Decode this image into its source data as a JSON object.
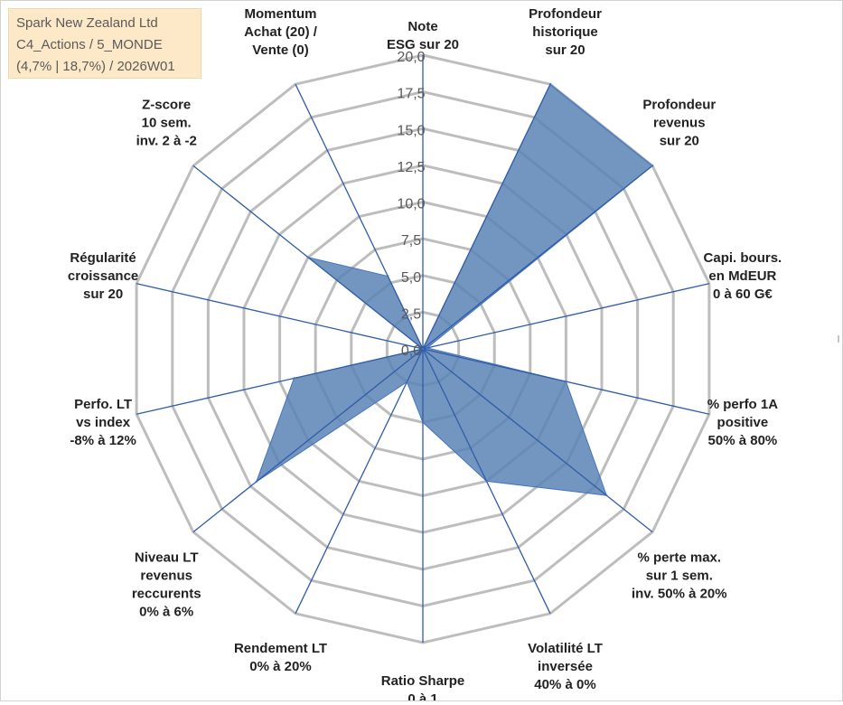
{
  "info_box": {
    "line1": "Spark New Zealand Ltd",
    "line2": "C4_Actions / 5_MONDE",
    "line3": "(4,7% | 18,7%) / 2026W01"
  },
  "colors": {
    "fill": "#5b84b5",
    "stroke": "#4472c4",
    "ring": "#bdbdbd",
    "spoke": "#2f5ca8",
    "info_bg": "#fde9c8"
  },
  "chart_data": {
    "type": "radar",
    "rmin": 0,
    "rmax": 20,
    "ticks": [
      "0,0",
      "2,5",
      "5,0",
      "7,5",
      "10,0",
      "12,5",
      "15,0",
      "17,5",
      "20,0"
    ],
    "categories": [
      [
        "Note",
        "ESG sur 20"
      ],
      [
        "Profondeur",
        "historique",
        "sur 20"
      ],
      [
        "Profondeur",
        "revenus",
        "sur 20"
      ],
      [
        "Capi. bours.",
        "en MdEUR",
        "0 à 60 G€"
      ],
      [
        "% perfo 1A",
        "positive",
        "50% à 80%"
      ],
      [
        "% perte max.",
        "sur 1 sem.",
        "inv. 50% à 20%"
      ],
      [
        "Volatilité LT",
        "inversée",
        "40% à 0%"
      ],
      [
        "Ratio Sharpe",
        "0 à 1"
      ],
      [
        "Rendement LT",
        "0% à 20%"
      ],
      [
        "Niveau LT",
        "revenus",
        "reccurents",
        "0% à 6%"
      ],
      [
        "Perfo. LT",
        "vs index",
        "-8% à 12%"
      ],
      [
        "Régularité",
        "croissance",
        "sur 20"
      ],
      [
        "Z-score",
        "10 sem.",
        "inv. 2 à -2"
      ],
      [
        "Momentum",
        "Achat (20) /",
        "Vente (0)"
      ]
    ],
    "values": [
      0,
      20,
      20,
      0.3,
      10,
      16,
      10,
      5,
      2.5,
      14.5,
      9,
      0,
      10,
      5.5
    ],
    "grid": true,
    "legend": "none"
  }
}
